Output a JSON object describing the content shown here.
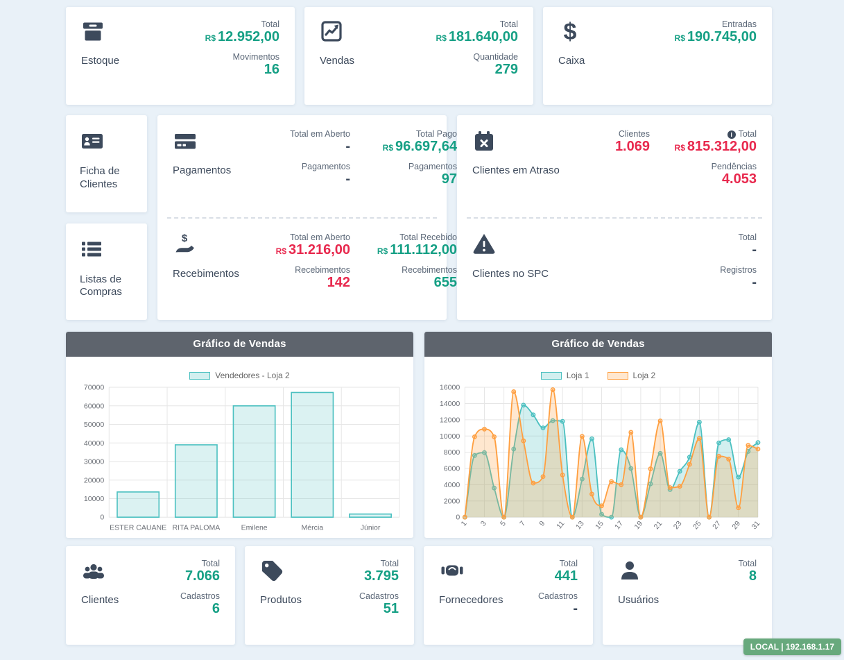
{
  "colors": {
    "teal": "#16a085",
    "red": "#e8294e",
    "navy": "#3d4a5c",
    "chart_header_bg": "#5e646d",
    "badge_bg": "#68a97d",
    "loja1": "#4bc0c0",
    "loja2": "#ff9f40"
  },
  "cards": {
    "estoque": {
      "title": "Estoque",
      "stats": [
        {
          "label": "Total",
          "prefix": "R$",
          "value": "12.952,00"
        },
        {
          "label": "Movimentos",
          "value": "16"
        }
      ]
    },
    "vendas": {
      "title": "Vendas",
      "stats": [
        {
          "label": "Total",
          "prefix": "R$",
          "value": "181.640,00"
        },
        {
          "label": "Quantidade",
          "value": "279"
        }
      ]
    },
    "caixa": {
      "title": "Caixa",
      "stats": [
        {
          "label": "Entradas",
          "prefix": "R$",
          "value": "190.745,00"
        }
      ]
    },
    "ficha_clientes": {
      "title": "Ficha de Clientes"
    },
    "listas_compras": {
      "title": "Listas de Compras"
    },
    "pagamentos": {
      "title": "Pagamentos",
      "col1": [
        {
          "label": "Total em Aberto",
          "value": "-"
        },
        {
          "label": "Pagamentos",
          "value": "-"
        }
      ],
      "col2": [
        {
          "label": "Total Pago",
          "prefix": "R$",
          "value": "96.697,64"
        },
        {
          "label": "Pagamentos",
          "value": "97"
        }
      ]
    },
    "recebimentos": {
      "title": "Recebimentos",
      "col1": [
        {
          "label": "Total em Aberto",
          "prefix": "R$",
          "value": "31.216,00"
        },
        {
          "label": "Recebimentos",
          "value": "142"
        }
      ],
      "col2": [
        {
          "label": "Total Recebido",
          "prefix": "R$",
          "value": "111.112,00"
        },
        {
          "label": "Recebimentos",
          "value": "655"
        }
      ]
    },
    "clientes_atraso": {
      "title": "Clientes em Atraso",
      "col1": [
        {
          "label": "Clientes",
          "value": "1.069"
        }
      ],
      "col2": [
        {
          "label": "Total",
          "info": true,
          "prefix": "R$",
          "value": "815.312,00"
        },
        {
          "label": "Pendências",
          "value": "4.053"
        }
      ]
    },
    "clientes_spc": {
      "title": "Clientes no SPC",
      "col2": [
        {
          "label": "Total",
          "value": "-"
        },
        {
          "label": "Registros",
          "value": "-"
        }
      ]
    },
    "clientes": {
      "title": "Clientes",
      "stats": [
        {
          "label": "Total",
          "value": "7.066"
        },
        {
          "label": "Cadastros",
          "value": "6"
        }
      ]
    },
    "produtos": {
      "title": "Produtos",
      "stats": [
        {
          "label": "Total",
          "value": "3.795"
        },
        {
          "label": "Cadastros",
          "value": "51"
        }
      ]
    },
    "fornecedores": {
      "title": "Fornecedores",
      "stats": [
        {
          "label": "Total",
          "value": "441"
        },
        {
          "label": "Cadastros",
          "value": "-"
        }
      ]
    },
    "usuarios": {
      "title": "Usuários",
      "stats": [
        {
          "label": "Total",
          "value": "8"
        }
      ]
    }
  },
  "status_badge": "LOCAL | 192.168.1.17",
  "chart_data": [
    {
      "type": "bar",
      "title": "Gráfico de Vendas",
      "legend_position": "top",
      "grid": true,
      "categories": [
        "ESTER CAUANE",
        "RITA PALOMA",
        "Emilene",
        "Mércia",
        "Júnior"
      ],
      "series": [
        {
          "name": "Vendedores - Loja 2",
          "color": "#4bc0c0",
          "values": [
            13600,
            39000,
            60000,
            67200,
            1700
          ]
        }
      ],
      "ylim": [
        0,
        70000
      ],
      "ystep": 10000,
      "xlabel": "",
      "ylabel": ""
    },
    {
      "type": "line",
      "title": "Gráfico de Vendas",
      "legend_position": "top",
      "grid": true,
      "smooth": true,
      "fill": true,
      "x": [
        1,
        2,
        3,
        4,
        5,
        6,
        7,
        8,
        9,
        10,
        11,
        12,
        13,
        14,
        15,
        16,
        17,
        18,
        19,
        20,
        21,
        22,
        23,
        24,
        25,
        26,
        27,
        28,
        29,
        30,
        31
      ],
      "xtick_every": 2,
      "series": [
        {
          "name": "Loja 1",
          "color": "#4bc0c0",
          "values": [
            0,
            7600,
            7950,
            3600,
            0,
            8400,
            13800,
            12600,
            11000,
            11900,
            11800,
            0,
            4700,
            9650,
            350,
            0,
            8300,
            6000,
            0,
            4100,
            7850,
            3400,
            5650,
            7400,
            11700,
            0,
            9150,
            9550,
            4950,
            8100,
            9200
          ]
        },
        {
          "name": "Loja 2",
          "color": "#ff9f40",
          "values": [
            0,
            9900,
            10850,
            9900,
            0,
            15450,
            9400,
            4200,
            5000,
            15700,
            5200,
            0,
            9950,
            2850,
            1400,
            4400,
            4000,
            10450,
            0,
            5950,
            11850,
            3650,
            3800,
            6500,
            9700,
            0,
            7500,
            7150,
            1150,
            8850,
            8400
          ]
        }
      ],
      "ylim": [
        0,
        16000
      ],
      "ystep": 2000,
      "xlabel": "",
      "ylabel": ""
    }
  ]
}
